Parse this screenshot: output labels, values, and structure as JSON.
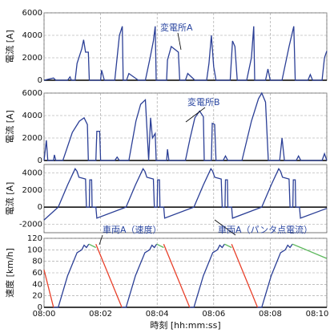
{
  "chart_data": [
    {
      "type": "line",
      "ylabel": "電流 [A]",
      "annotation": "変電所A",
      "xlim": [
        0,
        600
      ],
      "ylim": [
        0,
        6000
      ],
      "yticks": [
        0,
        2000,
        4000,
        6000
      ],
      "grid": true,
      "series": [
        {
          "color": "#2b3f96",
          "x": [
            0,
            20,
            25,
            50,
            55,
            58,
            66,
            70,
            80,
            84,
            88,
            94,
            96,
            120,
            122,
            128,
            150,
            160,
            166,
            168,
            175,
            180,
            200,
            215,
            225,
            232,
            236,
            238,
            260,
            262,
            270,
            285,
            288,
            300,
            305,
            320,
            345,
            350,
            355,
            360,
            365,
            395,
            400,
            405,
            410,
            430,
            440,
            445,
            447,
            470,
            475,
            480,
            505,
            520,
            530,
            533,
            560,
            565,
            570,
            590,
            595,
            600
          ],
          "values": [
            0,
            200,
            0,
            0,
            300,
            0,
            0,
            1500,
            2800,
            3600,
            2500,
            2500,
            0,
            0,
            900,
            0,
            0,
            4000,
            4800,
            0,
            0,
            600,
            0,
            0,
            2000,
            3500,
            4800,
            0,
            0,
            1800,
            3000,
            2500,
            0,
            0,
            600,
            0,
            0,
            1500,
            4000,
            1200,
            0,
            0,
            3500,
            3000,
            0,
            0,
            2000,
            4800,
            0,
            0,
            1000,
            0,
            0,
            3000,
            4800,
            0,
            0,
            500,
            0,
            0,
            2000,
            2600
          ]
        }
      ]
    },
    {
      "type": "line",
      "ylabel": "電流 [A]",
      "annotation": "変電所B",
      "xlim": [
        0,
        600
      ],
      "ylim": [
        0,
        6000
      ],
      "yticks": [
        0,
        2000,
        4000,
        6000
      ],
      "grid": true,
      "series": [
        {
          "color": "#2b3f96",
          "x": [
            0,
            5,
            8,
            20,
            22,
            25,
            40,
            60,
            75,
            85,
            92,
            94,
            110,
            112,
            118,
            120,
            150,
            155,
            160,
            180,
            195,
            205,
            215,
            222,
            226,
            230,
            236,
            238,
            260,
            262,
            265,
            300,
            310,
            320,
            330,
            338,
            340,
            355,
            357,
            362,
            365,
            380,
            385,
            390,
            420,
            440,
            455,
            462,
            470,
            476,
            500,
            505,
            510,
            535,
            540,
            545,
            590,
            595,
            600
          ],
          "values": [
            0,
            1800,
            0,
            0,
            500,
            0,
            0,
            2500,
            3500,
            3800,
            3200,
            0,
            0,
            2600,
            2600,
            0,
            0,
            300,
            0,
            0,
            3500,
            5000,
            5400,
            0,
            3800,
            2000,
            2400,
            0,
            0,
            1000,
            0,
            0,
            2000,
            3800,
            4400,
            3900,
            0,
            0,
            3300,
            3200,
            0,
            0,
            400,
            0,
            0,
            3500,
            5500,
            6000,
            5200,
            0,
            0,
            2000,
            0,
            0,
            400,
            0,
            0,
            600,
            0
          ]
        }
      ]
    },
    {
      "type": "line",
      "ylabel": "電流 [A]",
      "annotation": "車両A（パンタ点電流）",
      "xlim": [
        0,
        600
      ],
      "ylim": [
        -3000,
        5000
      ],
      "yticks": [
        -2000,
        0,
        2000,
        4000
      ],
      "grid": true,
      "series": [
        {
          "color": "#2b3f96",
          "x": [
            0,
            30,
            50,
            66,
            70,
            74,
            88,
            90,
            96,
            97,
            101,
            102,
            110,
            112,
            174,
            194,
            210,
            214,
            218,
            232,
            234,
            240,
            241,
            245,
            246,
            254,
            256,
            318,
            338,
            354,
            358,
            362,
            376,
            378,
            384,
            385,
            389,
            390,
            398,
            400,
            462,
            482,
            498,
            502,
            506,
            520,
            522,
            528,
            529,
            533,
            534,
            542,
            544,
            600
          ],
          "values": [
            -1500,
            0,
            2600,
            4500,
            4200,
            3500,
            3300,
            0,
            0,
            3200,
            3200,
            0,
            0,
            -1300,
            0,
            2600,
            4500,
            4200,
            3500,
            3300,
            0,
            0,
            3200,
            3200,
            0,
            0,
            -1300,
            0,
            2600,
            4500,
            4200,
            3500,
            3300,
            0,
            0,
            3200,
            3200,
            0,
            0,
            -1300,
            0,
            2600,
            4500,
            4200,
            3500,
            3300,
            0,
            0,
            3200,
            3200,
            0,
            0,
            -1300,
            -150
          ]
        }
      ]
    },
    {
      "type": "line",
      "ylabel": "速度 [km/h]",
      "xlabel": "時刻 [hh:mm:ss]",
      "annotation": "車両A（速度）",
      "xlim": [
        0,
        600
      ],
      "ylim": [
        0,
        120
      ],
      "yticks": [
        0,
        20,
        40,
        60,
        80,
        100,
        120
      ],
      "grid": true,
      "xticks": [
        {
          "value": 0,
          "label": "08:00"
        },
        {
          "value": 120,
          "label": "08:02"
        },
        {
          "value": 240,
          "label": "08:04"
        },
        {
          "value": 360,
          "label": "08:06"
        },
        {
          "value": 480,
          "label": "08:08"
        },
        {
          "value": 600,
          "label": "08:10"
        }
      ],
      "series": [
        {
          "color": "#2b3f96",
          "x": [
            20,
            30,
            50,
            70,
            80,
            85,
            90,
            95,
            null,
            165,
            174,
            194,
            214,
            224,
            229,
            234,
            239,
            null,
            309,
            318,
            338,
            358,
            368,
            373,
            378,
            383,
            null,
            453,
            462,
            482,
            502,
            512,
            517,
            522,
            527
          ],
          "values": [
            0,
            0,
            55,
            95,
            100,
            108,
            104,
            110,
            null,
            0,
            0,
            55,
            95,
            100,
            108,
            104,
            110,
            null,
            0,
            0,
            55,
            95,
            100,
            108,
            104,
            110,
            null,
            0,
            0,
            55,
            95,
            100,
            108,
            104,
            110
          ]
        },
        {
          "color": "#5cb85c",
          "x": [
            95,
            110,
            null,
            239,
            254,
            null,
            383,
            398,
            null,
            527,
            600
          ],
          "values": [
            110,
            104,
            null,
            110,
            104,
            null,
            110,
            104,
            null,
            110,
            85
          ]
        },
        {
          "color": "#e8402a",
          "x": [
            0,
            20,
            null,
            110,
            165,
            null,
            254,
            309,
            null,
            398,
            453
          ],
          "values": [
            65,
            0,
            null,
            110,
            0,
            null,
            110,
            0,
            null,
            110,
            0
          ]
        }
      ]
    }
  ]
}
